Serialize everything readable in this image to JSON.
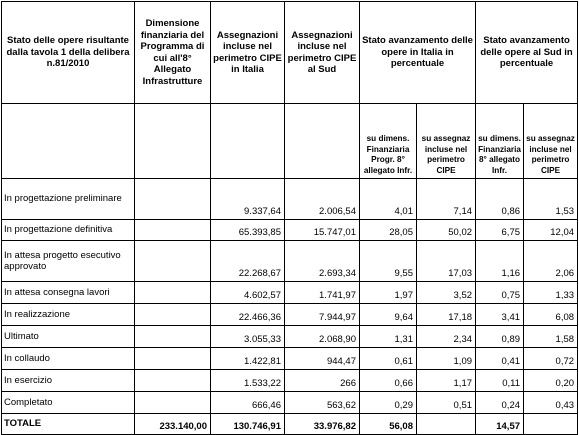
{
  "headers": {
    "col1": "Stato delle opere risultante dalla tavola 1 della delibera n.81/2010",
    "col2": "Dimensione finanziaria del Programma di cui all'8° Allegato Infrastrutture",
    "col3": "Assegnazioni incluse nel perimetro CIPE in Italia",
    "col4": "Assegnazioni incluse nel perimetro CIPE al Sud",
    "col5": "Stato avanzamento delle opere in Italia in percentuale",
    "col6": "Stato avanzamento delle opere al Sud in percentuale"
  },
  "subheaders": {
    "italia_dim": "su dimens. Finanziaria Progr. 8° allegato Infr.",
    "italia_cipe": "su assegnaz incluse nel perimetro CIPE",
    "sud_dim": "su dimens. Finanziaria 8° allegato Infr.",
    "sud_cipe": "su assegnaz incluse nel perimetro CIPE"
  },
  "rows": [
    {
      "label": "In progettazione preliminare",
      "dim": "",
      "cipe_it": "9.337,64",
      "cipe_sud": "2.006,54",
      "it_dim": "4,01",
      "it_cipe": "7,14",
      "sud_dim": "0,86",
      "sud_cipe": "1,53"
    },
    {
      "label": "In progettazione definitiva",
      "dim": "",
      "cipe_it": "65.393,85",
      "cipe_sud": "15.747,01",
      "it_dim": "28,05",
      "it_cipe": "50,02",
      "sud_dim": "6,75",
      "sud_cipe": "12,04"
    },
    {
      "label": "In attesa progetto esecutivo approvato",
      "dim": "",
      "cipe_it": "22.268,67",
      "cipe_sud": "2.693,34",
      "it_dim": "9,55",
      "it_cipe": "17,03",
      "sud_dim": "1,16",
      "sud_cipe": "2,06"
    },
    {
      "label": "In attesa consegna lavori",
      "dim": "",
      "cipe_it": "4.602,57",
      "cipe_sud": "1.741,97",
      "it_dim": "1,97",
      "it_cipe": "3,52",
      "sud_dim": "0,75",
      "sud_cipe": "1,33"
    },
    {
      "label": "In realizzazione",
      "dim": "",
      "cipe_it": "22.466,36",
      "cipe_sud": "7.944,97",
      "it_dim": "9,64",
      "it_cipe": "17,18",
      "sud_dim": "3,41",
      "sud_cipe": "6,08"
    },
    {
      "label": "Ultimato",
      "dim": "",
      "cipe_it": "3.055,33",
      "cipe_sud": "2.068,90",
      "it_dim": "1,31",
      "it_cipe": "2,34",
      "sud_dim": "0,89",
      "sud_cipe": "1,58"
    },
    {
      "label": "In collaudo",
      "dim": "",
      "cipe_it": "1.422,81",
      "cipe_sud": "944,47",
      "it_dim": "0,61",
      "it_cipe": "1,09",
      "sud_dim": "0,41",
      "sud_cipe": "0,72"
    },
    {
      "label": "In esercizio",
      "dim": "",
      "cipe_it": "1.533,22",
      "cipe_sud": "266",
      "it_dim": "0,66",
      "it_cipe": "1,17",
      "sud_dim": "0,11",
      "sud_cipe": "0,20"
    },
    {
      "label": "Completato",
      "dim": "",
      "cipe_it": "666,46",
      "cipe_sud": "563,62",
      "it_dim": "0,29",
      "it_cipe": "0,51",
      "sud_dim": "0,24",
      "sud_cipe": "0,43"
    }
  ],
  "total": {
    "label": "TOTALE",
    "dim": "233.140,00",
    "cipe_it": "130.746,91",
    "cipe_sud": "33.976,82",
    "it_dim": "56,08",
    "it_cipe": "",
    "sud_dim": "14,57",
    "sud_cipe": ""
  }
}
